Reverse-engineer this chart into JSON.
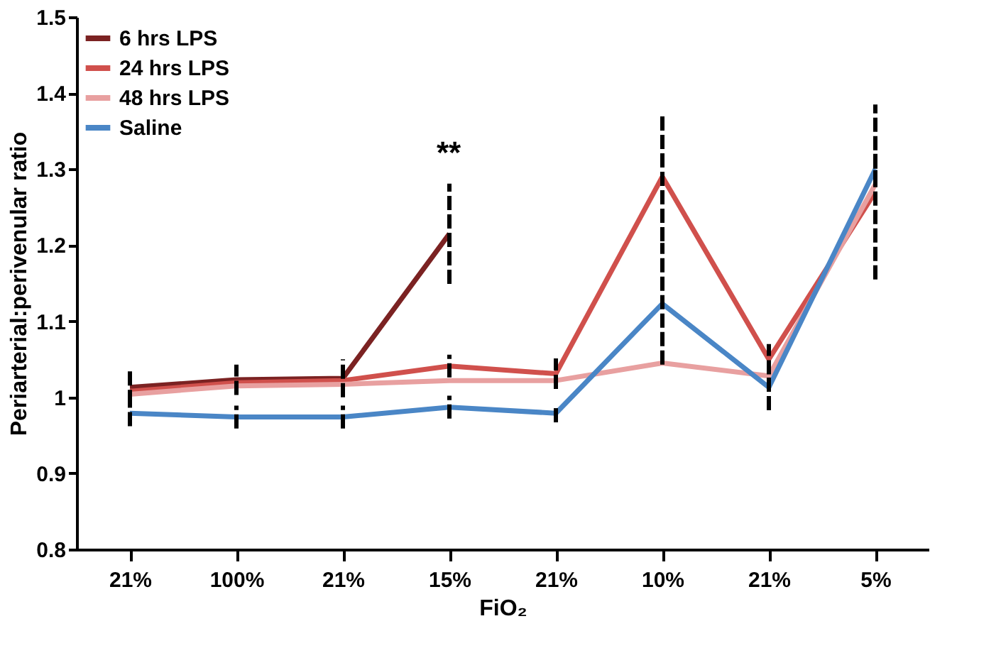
{
  "chart_data": {
    "type": "line",
    "xlabel": "FiO₂",
    "ylabel": "Periarterial:perivenular ratio",
    "categories": [
      "21%",
      "100%",
      "21%",
      "15%",
      "21%",
      "10%",
      "21%",
      "5%"
    ],
    "series": [
      {
        "name": "6 hrs LPS",
        "color": "#7b2222",
        "values": [
          1.013,
          1.023,
          1.025,
          1.215,
          null,
          null,
          null,
          null
        ],
        "errors": [
          0.022,
          0.02,
          0.025,
          0.066,
          null,
          null,
          null,
          null
        ]
      },
      {
        "name": "24 hrs LPS",
        "color": "#d0504c",
        "values": [
          1.008,
          1.019,
          1.022,
          1.041,
          1.031,
          1.29,
          1.05,
          1.27
        ],
        "errors": [
          null,
          null,
          null,
          0.015,
          0.02,
          0.085,
          0.02,
          0.115
        ]
      },
      {
        "name": "48 hrs LPS",
        "color": "#e8a0a0",
        "values": [
          1.004,
          1.015,
          1.017,
          1.022,
          1.022,
          1.045,
          1.028,
          1.28
        ]
      },
      {
        "name": "Saline",
        "color": "#4a86c6",
        "values": [
          0.979,
          0.974,
          0.974,
          0.987,
          0.979,
          1.123,
          1.013,
          1.3
        ],
        "errors": [
          0.017,
          0.015,
          0.015,
          0.015,
          0.012,
          0.08,
          0.03,
          0.02
        ]
      }
    ],
    "ylim": [
      0.8,
      1.5
    ],
    "yticks": [
      0.8,
      0.9,
      1,
      1.1,
      1.2,
      1.3,
      1.4,
      1.5
    ],
    "annotations": [
      "**"
    ],
    "grid": false,
    "legend": "top left",
    "marker": "none",
    "line_style": "solid"
  }
}
